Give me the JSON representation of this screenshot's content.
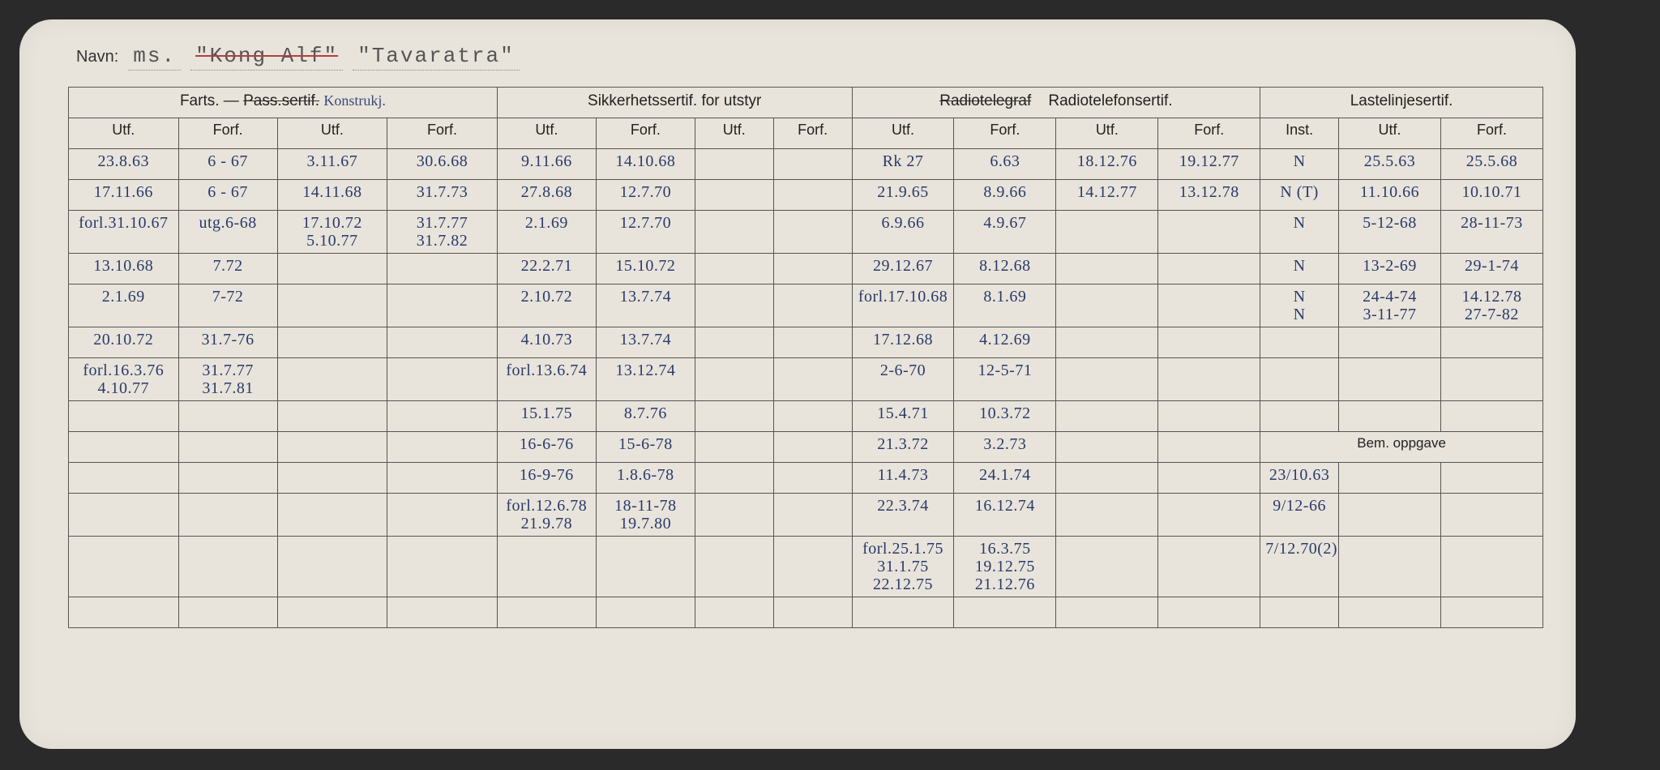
{
  "name": {
    "label": "Navn:",
    "prefix": "ms.",
    "struck": "\"Kong Alf\"",
    "current": "\"Tavaratra\""
  },
  "headers": {
    "farts_group": "Farts. —",
    "pass_struck": "Pass.sertif.",
    "kons_hand": "Konstrukj.",
    "sikkerhet": "Sikkerhetssertif. for utstyr",
    "radiotel_struck": "Radiotelegraf",
    "radiotelefon": "Radiotelefonsertif.",
    "lastelinje": "Lastelinjesertif.",
    "utf": "Utf.",
    "forf": "Forf.",
    "inst": "Inst.",
    "bem": "Bem. oppgave"
  },
  "rows": [
    {
      "c1": "23.8.63",
      "c2": "6 - 67",
      "c3": "3.11.67",
      "c4": "30.6.68",
      "c5": "9.11.66",
      "c6": "14.10.68",
      "c7": "",
      "c8": "",
      "c9": "Rk 27",
      "c10": "6.63",
      "c11": "18.12.76",
      "c12": "19.12.77",
      "c13": "N",
      "c14": "25.5.63",
      "c15": "25.5.68"
    },
    {
      "c1": "17.11.66",
      "c2": "6 - 67",
      "c3": "14.11.68",
      "c4": "31.7.73",
      "c5": "27.8.68",
      "c6": "12.7.70",
      "c7": "",
      "c8": "",
      "c9": "21.9.65",
      "c10": "8.9.66",
      "c11": "14.12.77",
      "c12": "13.12.78",
      "c13": "N (T)",
      "c14": "11.10.66",
      "c15": "10.10.71"
    },
    {
      "c1": "forl.31.10.67",
      "c2": "utg.6-68",
      "c3": "17.10.72\n5.10.77",
      "c4": "31.7.77\n31.7.82",
      "c5": "2.1.69",
      "c6": "12.7.70",
      "c7": "",
      "c8": "",
      "c9": "6.9.66",
      "c10": "4.9.67",
      "c11": "",
      "c12": "",
      "c13": "N",
      "c14": "5-12-68",
      "c15": "28-11-73"
    },
    {
      "c1": "13.10.68",
      "c2": "7.72",
      "c3": "",
      "c4": "",
      "c5": "22.2.71",
      "c6": "15.10.72",
      "c7": "",
      "c8": "",
      "c9": "29.12.67",
      "c10": "8.12.68",
      "c11": "",
      "c12": "",
      "c13": "N",
      "c14": "13-2-69",
      "c15": "29-1-74"
    },
    {
      "c1": "2.1.69",
      "c2": "7-72",
      "c3": "",
      "c4": "",
      "c5": "2.10.72",
      "c6": "13.7.74",
      "c7": "",
      "c8": "",
      "c9": "forl.17.10.68",
      "c10": "8.1.69",
      "c11": "",
      "c12": "",
      "c13": "N\nN",
      "c14": "24-4-74\n3-11-77",
      "c15": "14.12.78\n27-7-82"
    },
    {
      "c1": "20.10.72",
      "c2": "31.7-76",
      "c3": "",
      "c4": "",
      "c5": "4.10.73",
      "c6": "13.7.74",
      "c7": "",
      "c8": "",
      "c9": "17.12.68",
      "c10": "4.12.69",
      "c11": "",
      "c12": "",
      "c13": "",
      "c14": "",
      "c15": ""
    },
    {
      "c1": "forl.16.3.76\n4.10.77",
      "c2": "31.7.77\n31.7.81",
      "c3": "",
      "c4": "",
      "c5": "forl.13.6.74",
      "c6": "13.12.74",
      "c7": "",
      "c8": "",
      "c9": "2-6-70",
      "c10": "12-5-71",
      "c11": "",
      "c12": "",
      "c13": "",
      "c14": "",
      "c15": ""
    },
    {
      "c1": "",
      "c2": "",
      "c3": "",
      "c4": "",
      "c5": "15.1.75",
      "c6": "8.7.76",
      "c7": "",
      "c8": "",
      "c9": "15.4.71",
      "c10": "10.3.72",
      "c11": "",
      "c12": "",
      "c13": "",
      "c14": "",
      "c15": ""
    },
    {
      "c1": "",
      "c2": "",
      "c3": "",
      "c4": "",
      "c5": "16-6-76",
      "c6": "15-6-78",
      "c7": "",
      "c8": "",
      "c9": "21.3.72",
      "c10": "3.2.73",
      "c11": "",
      "c12": "",
      "c13": "",
      "c14": "",
      "c15": ""
    },
    {
      "c1": "",
      "c2": "",
      "c3": "",
      "c4": "",
      "c5": "16-9-76",
      "c6": "1.8.6-78",
      "c7": "",
      "c8": "",
      "c9": "11.4.73",
      "c10": "24.1.74",
      "c11": "",
      "c12": "",
      "c13": "23/10.63",
      "c14": "",
      "c15": ""
    },
    {
      "c1": "",
      "c2": "",
      "c3": "",
      "c4": "",
      "c5": "forl.12.6.78\n21.9.78",
      "c6": "18-11-78\n19.7.80",
      "c7": "",
      "c8": "",
      "c9": "22.3.74",
      "c10": "16.12.74",
      "c11": "",
      "c12": "",
      "c13": "9/12-66",
      "c14": "",
      "c15": ""
    },
    {
      "c1": "",
      "c2": "",
      "c3": "",
      "c4": "",
      "c5": "",
      "c6": "",
      "c7": "",
      "c8": "",
      "c9": "forl.25.1.75\n31.1.75\n22.12.75",
      "c10": "16.3.75\n19.12.75\n21.12.76",
      "c11": "",
      "c12": "",
      "c13": "7/12.70(2)",
      "c14": "",
      "c15": ""
    },
    {
      "c1": "",
      "c2": "",
      "c3": "",
      "c4": "",
      "c5": "",
      "c6": "",
      "c7": "",
      "c8": "",
      "c9": "",
      "c10": "",
      "c11": "",
      "c12": "",
      "c13": "",
      "c14": "",
      "c15": ""
    }
  ],
  "colors": {
    "paper": "#e8e4db",
    "ink": "#2a3a6a",
    "border": "#555",
    "bg": "#2a2a2a"
  }
}
